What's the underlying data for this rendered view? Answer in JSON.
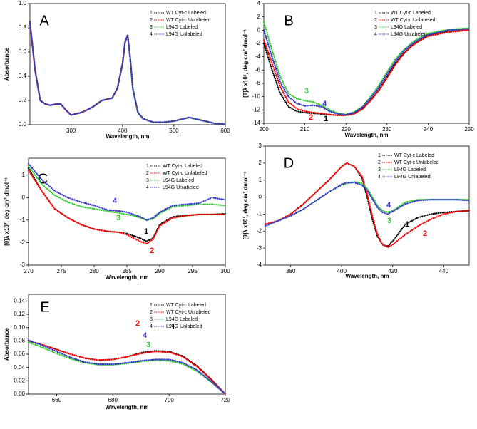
{
  "chart_data": [
    {
      "type": "line",
      "title": "A",
      "x_label": "Wavelength, nm",
      "y_label": "Absorbance",
      "x": [
        220,
        230,
        240,
        250,
        260,
        270,
        280,
        290,
        300,
        320,
        340,
        360,
        380,
        390,
        400,
        405,
        410,
        415,
        420,
        430,
        440,
        460,
        480,
        500,
        520,
        530,
        540,
        560,
        580,
        600
      ],
      "series": [
        {
          "number": "1",
          "name": "WT Cyt-c Labeled",
          "color": "#000000",
          "values": [
            0.85,
            0.45,
            0.2,
            0.17,
            0.16,
            0.17,
            0.17,
            0.12,
            0.08,
            0.1,
            0.14,
            0.2,
            0.22,
            0.3,
            0.5,
            0.68,
            0.74,
            0.55,
            0.3,
            0.1,
            0.05,
            0.02,
            0.02,
            0.03,
            0.05,
            0.06,
            0.05,
            0.03,
            0.01,
            0.005
          ]
        },
        {
          "number": "2",
          "name": "WT Cyt-c Unlabeled",
          "color": "#ff0000",
          "values": [
            0.84,
            0.45,
            0.2,
            0.17,
            0.16,
            0.17,
            0.17,
            0.12,
            0.08,
            0.1,
            0.14,
            0.2,
            0.22,
            0.3,
            0.5,
            0.68,
            0.74,
            0.55,
            0.3,
            0.1,
            0.05,
            0.02,
            0.02,
            0.03,
            0.05,
            0.06,
            0.05,
            0.03,
            0.01,
            0.005
          ]
        },
        {
          "number": "3",
          "name": "L94G Labeled",
          "color": "#33cc33",
          "values": [
            0.85,
            0.46,
            0.2,
            0.17,
            0.16,
            0.17,
            0.17,
            0.12,
            0.08,
            0.1,
            0.14,
            0.2,
            0.22,
            0.3,
            0.5,
            0.68,
            0.73,
            0.55,
            0.3,
            0.1,
            0.05,
            0.02,
            0.02,
            0.03,
            0.05,
            0.06,
            0.05,
            0.03,
            0.01,
            0.005
          ]
        },
        {
          "number": "4",
          "name": "L94G Unlabeled",
          "color": "#3333cc",
          "values": [
            0.85,
            0.45,
            0.2,
            0.17,
            0.16,
            0.17,
            0.17,
            0.12,
            0.08,
            0.1,
            0.14,
            0.2,
            0.22,
            0.3,
            0.5,
            0.68,
            0.74,
            0.55,
            0.3,
            0.1,
            0.05,
            0.02,
            0.02,
            0.03,
            0.05,
            0.06,
            0.05,
            0.03,
            0.01,
            0.005
          ]
        }
      ],
      "xlim": [
        220,
        600
      ],
      "xticks": [
        300,
        400,
        500,
        600
      ],
      "ylim": [
        0,
        1
      ],
      "yticks": [
        {
          "value": 0,
          "label": "0.0"
        },
        {
          "value": 0.2,
          "label": "0.2"
        },
        {
          "value": 0.4,
          "label": "0.4"
        },
        {
          "value": 0.6,
          "label": "0.6"
        },
        {
          "value": 0.8,
          "label": "0.8"
        },
        {
          "value": 1,
          "label": "1.0"
        }
      ]
    },
    {
      "type": "line",
      "title": "B",
      "x_label": "Wavelength, nm",
      "y_label": "[θ]λ x10³, deg cm² dmol⁻¹",
      "x": [
        200,
        202,
        204,
        206,
        208,
        210,
        212,
        214,
        216,
        218,
        220,
        222,
        224,
        226,
        228,
        230,
        232,
        234,
        236,
        238,
        240,
        245,
        250
      ],
      "series": [
        {
          "number": "1",
          "name": "WT Cyt-c Labeled",
          "color": "#000000",
          "values": [
            -2,
            -6,
            -9.5,
            -11.5,
            -12.2,
            -12.4,
            -12.5,
            -12.6,
            -12.7,
            -12.8,
            -12.8,
            -12.5,
            -11.8,
            -10.5,
            -9,
            -7,
            -5,
            -3.5,
            -2.3,
            -1.5,
            -0.8,
            -0.2,
            0
          ]
        },
        {
          "number": "2",
          "name": "WT Cyt-c Unlabeled",
          "color": "#ff0000",
          "values": [
            -1.5,
            -5,
            -8.5,
            -10.8,
            -11.8,
            -12.2,
            -12.4,
            -12.5,
            -12.7,
            -12.8,
            -12.8,
            -12.6,
            -11.9,
            -10.6,
            -9.1,
            -7.2,
            -5.2,
            -3.6,
            -2.4,
            -1.6,
            -0.9,
            -0.3,
            0
          ]
        },
        {
          "number": "3",
          "name": "L94G Labeled",
          "color": "#33cc33",
          "values": [
            1.2,
            -3,
            -7,
            -9.5,
            -10.3,
            -10.6,
            -10.8,
            -11.3,
            -12,
            -12.5,
            -12.7,
            -12.3,
            -11.5,
            -10,
            -8.3,
            -6.3,
            -4.4,
            -3,
            -1.9,
            -1.1,
            -0.5,
            0.1,
            0.3
          ]
        },
        {
          "number": "4",
          "name": "L94G Unlabeled",
          "color": "#3333cc",
          "values": [
            0,
            -4,
            -7.8,
            -10,
            -11,
            -11.4,
            -11.3,
            -11.5,
            -12.2,
            -12.6,
            -12.7,
            -12.4,
            -11.6,
            -10.2,
            -8.6,
            -6.6,
            -4.7,
            -3.2,
            -2.1,
            -1.3,
            -0.7,
            0,
            0.2
          ]
        }
      ],
      "xlim": [
        200,
        250
      ],
      "xticks": [
        200,
        210,
        220,
        230,
        240,
        250
      ],
      "ylim": [
        -14,
        4
      ],
      "yticks": [
        -14,
        -12,
        -10,
        -8,
        -6,
        -4,
        -2,
        0,
        2,
        4
      ]
    },
    {
      "type": "line",
      "title": "C",
      "x_label": "Wavelength, nm",
      "y_label": "[θ]λ x10², deg cm² dmol⁻¹",
      "x": [
        270,
        272,
        274,
        276,
        278,
        280,
        282,
        284,
        285,
        286,
        287,
        288,
        289,
        290,
        292,
        294,
        296,
        298,
        300
      ],
      "series": [
        {
          "number": "1",
          "name": "WT Cyt-c Labeled",
          "color": "#000000",
          "values": [
            1.3,
            0.3,
            -0.5,
            -0.9,
            -1.2,
            -1.4,
            -1.5,
            -1.55,
            -1.6,
            -1.7,
            -1.8,
            -1.95,
            -1.8,
            -1.2,
            -0.85,
            -0.8,
            -0.75,
            -0.75,
            -0.72
          ]
        },
        {
          "number": "2",
          "name": "WT Cyt-c Unlabeled",
          "color": "#ff0000",
          "values": [
            1.2,
            0.3,
            -0.5,
            -0.9,
            -1.2,
            -1.4,
            -1.5,
            -1.55,
            -1.65,
            -1.8,
            -1.95,
            -2.05,
            -1.85,
            -1.25,
            -0.9,
            -0.8,
            -0.75,
            -0.75,
            -0.75
          ]
        },
        {
          "number": "3",
          "name": "L94G Labeled",
          "color": "#33cc33",
          "values": [
            1.4,
            0.6,
            0.1,
            -0.2,
            -0.4,
            -0.5,
            -0.6,
            -0.7,
            -0.75,
            -0.8,
            -0.9,
            -1,
            -0.95,
            -0.7,
            -0.4,
            -0.35,
            -0.3,
            -0.3,
            -0.35
          ]
        },
        {
          "number": "4",
          "name": "L94G Unlabeled",
          "color": "#3333cc",
          "values": [
            1.5,
            0.8,
            0.3,
            0,
            -0.2,
            -0.35,
            -0.55,
            -0.6,
            -0.65,
            -0.75,
            -0.85,
            -1,
            -0.9,
            -0.65,
            -0.35,
            -0.3,
            -0.25,
            0,
            -0.1
          ]
        }
      ],
      "xlim": [
        270,
        300
      ],
      "xticks": [
        270,
        275,
        280,
        285,
        290,
        295,
        300
      ],
      "ylim": [
        -3,
        1.75
      ],
      "yticks": [
        -3,
        -2,
        -1,
        0,
        1
      ]
    },
    {
      "type": "line",
      "title": "D",
      "x_label": "Wavelength, nm",
      "y_label": "[θ]λ x10², deg cm² dmol⁻¹",
      "x": [
        370,
        375,
        380,
        385,
        390,
        395,
        400,
        402,
        405,
        408,
        410,
        412,
        414,
        416,
        418,
        420,
        425,
        430,
        435,
        440,
        445,
        450
      ],
      "series": [
        {
          "number": "1",
          "name": "WT Cyt-c Labeled",
          "color": "#000000",
          "values": [
            -1.6,
            -1.4,
            -1,
            -0.4,
            0.3,
            1,
            1.8,
            2,
            1.8,
            1.1,
            0,
            -1.3,
            -2.3,
            -2.8,
            -2.9,
            -2.6,
            -1.6,
            -1.2,
            -1,
            -0.9,
            -0.85,
            -0.8
          ]
        },
        {
          "number": "2",
          "name": "WT Cyt-c Unlabeled",
          "color": "#ff0000",
          "values": [
            -1.6,
            -1.4,
            -1,
            -0.4,
            0.3,
            1,
            1.8,
            2,
            1.8,
            1.2,
            0.2,
            -1.1,
            -2.2,
            -2.8,
            -2.95,
            -2.8,
            -2.2,
            -1.7,
            -1.3,
            -1,
            -0.85,
            -0.8
          ]
        },
        {
          "number": "3",
          "name": "L94G Labeled",
          "color": "#33cc33",
          "values": [
            -1.7,
            -1.4,
            -1.1,
            -0.7,
            -0.2,
            0.3,
            0.7,
            0.8,
            0.9,
            0.8,
            0.5,
            0,
            -0.5,
            -0.8,
            -0.9,
            -0.8,
            -0.3,
            -0.15,
            -0.15,
            -0.15,
            -0.15,
            -0.15
          ]
        },
        {
          "number": "4",
          "name": "L94G Unlabeled",
          "color": "#3333cc",
          "values": [
            -1.7,
            -1.4,
            -1.1,
            -0.7,
            -0.2,
            0.3,
            0.75,
            0.85,
            0.85,
            0.7,
            0.4,
            -0.1,
            -0.6,
            -0.9,
            -1,
            -0.85,
            -0.4,
            -0.2,
            -0.15,
            -0.15,
            -0.15,
            -0.2
          ]
        }
      ],
      "xlim": [
        370,
        450
      ],
      "xticks": [
        380,
        400,
        420,
        440
      ],
      "ylim": [
        -4,
        3
      ],
      "yticks": [
        -4,
        -3,
        -2,
        -1,
        0,
        1,
        2,
        3
      ]
    },
    {
      "type": "line",
      "title": "E",
      "x_label": "Wavelength, nm",
      "y_label": "Absorbance",
      "x": [
        650,
        655,
        660,
        665,
        670,
        675,
        680,
        685,
        690,
        695,
        700,
        705,
        710,
        715,
        720
      ],
      "series": [
        {
          "number": "1",
          "name": "WT Cyt-c Labeled",
          "color": "#000000",
          "values": [
            0.08,
            0.074,
            0.067,
            0.06,
            0.054,
            0.051,
            0.052,
            0.056,
            0.062,
            0.065,
            0.064,
            0.057,
            0.042,
            0.022,
            0
          ]
        },
        {
          "number": "2",
          "name": "WT Cyt-c Unlabeled",
          "color": "#ff0000",
          "values": [
            0.08,
            0.074,
            0.067,
            0.06,
            0.054,
            0.051,
            0.052,
            0.056,
            0.061,
            0.064,
            0.063,
            0.056,
            0.041,
            0.022,
            0
          ]
        },
        {
          "number": "3",
          "name": "L94G Labeled",
          "color": "#33cc33",
          "values": [
            0.078,
            0.07,
            0.061,
            0.053,
            0.047,
            0.044,
            0.044,
            0.046,
            0.049,
            0.051,
            0.05,
            0.045,
            0.034,
            0.018,
            0
          ]
        },
        {
          "number": "4",
          "name": "L94G Unlabeled",
          "color": "#3333cc",
          "values": [
            0.081,
            0.073,
            0.064,
            0.055,
            0.048,
            0.045,
            0.045,
            0.047,
            0.05,
            0.052,
            0.052,
            0.047,
            0.036,
            0.019,
            0
          ]
        }
      ],
      "xlim": [
        650,
        720
      ],
      "xticks": [
        660,
        680,
        700,
        720
      ],
      "ylim": [
        0,
        0.15
      ],
      "yticks": [
        {
          "value": 0,
          "label": "0.00"
        },
        {
          "value": 0.02,
          "label": "0.02"
        },
        {
          "value": 0.04,
          "label": "0.04"
        },
        {
          "value": 0.06,
          "label": "0.06"
        },
        {
          "value": 0.08,
          "label": "0.08"
        },
        {
          "value": 0.1,
          "label": "0.10"
        },
        {
          "value": 0.12,
          "label": "0.12"
        },
        {
          "value": 0.14,
          "label": "0.14"
        }
      ]
    }
  ]
}
